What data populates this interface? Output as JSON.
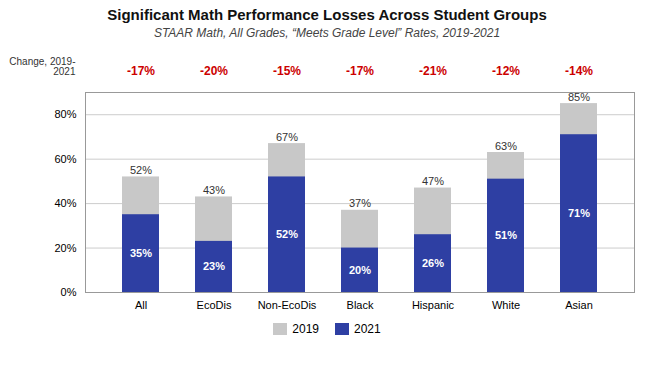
{
  "chart_data": {
    "type": "bar",
    "title": "Significant Math Performance Losses Across Student Groups",
    "subtitle": "STAAR Math, All Grades, “Meets Grade Level” Rates, 2019-2021",
    "categories": [
      "All",
      "EcoDis",
      "Non-EcoDis",
      "Black",
      "Hispanic",
      "White",
      "Asian"
    ],
    "series": [
      {
        "name": "2019",
        "color": "#c8c8c8",
        "values": [
          52,
          43,
          67,
          37,
          47,
          63,
          85
        ],
        "value_labels": [
          "52%",
          "43%",
          "67%",
          "37%",
          "47%",
          "63%",
          "85%"
        ]
      },
      {
        "name": "2021",
        "color": "#2e3fa3",
        "values": [
          35,
          23,
          52,
          20,
          26,
          51,
          71
        ],
        "value_labels": [
          "35%",
          "23%",
          "52%",
          "20%",
          "26%",
          "51%",
          "71%"
        ]
      }
    ],
    "changes": {
      "label": "Change, 2019-\n2021",
      "color": "#cc0000",
      "values": [
        -17,
        -20,
        -15,
        -17,
        -21,
        -12,
        -14
      ],
      "value_labels": [
        "-17%",
        "-20%",
        "-15%",
        "-17%",
        "-21%",
        "-12%",
        "-14%"
      ]
    },
    "ylim": [
      0,
      90
    ],
    "yticks": [
      {
        "value": 0,
        "label": "0%"
      },
      {
        "value": 20,
        "label": "20%"
      },
      {
        "value": 40,
        "label": "40%"
      },
      {
        "value": 60,
        "label": "60%"
      },
      {
        "value": 80,
        "label": "80%"
      }
    ],
    "grid": true,
    "legend": "bottom",
    "data_labels": true
  }
}
